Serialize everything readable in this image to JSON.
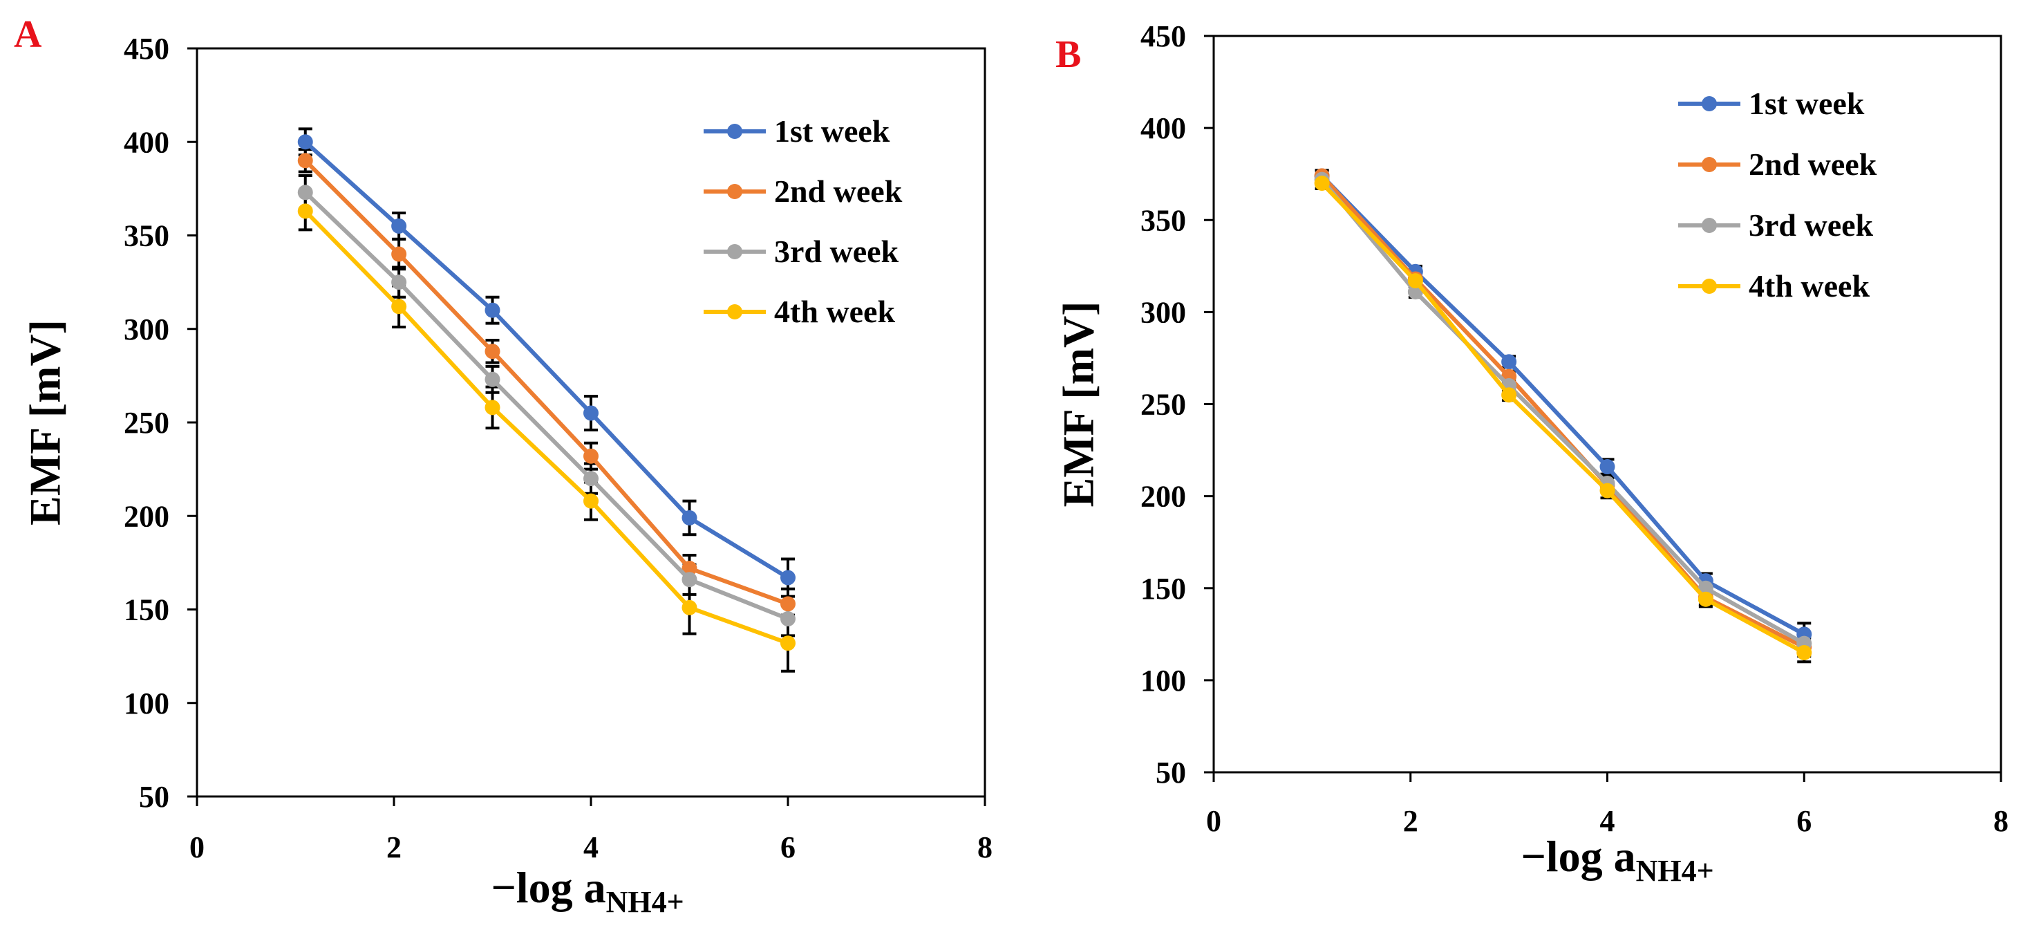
{
  "chart_data": [
    {
      "type": "line",
      "panel_label": "A",
      "xlabel_main": "−log a",
      "xlabel_sub": "NH4+",
      "ylabel": "EMF [mV]",
      "xlim": [
        0,
        8
      ],
      "ylim": [
        50,
        450
      ],
      "xticks": [
        0,
        2,
        4,
        6,
        8
      ],
      "yticks": [
        50,
        100,
        150,
        200,
        250,
        300,
        350,
        400,
        450
      ],
      "x": [
        1.1,
        2.05,
        3.0,
        4.0,
        5.0,
        6.0
      ],
      "legend_position": "top-right",
      "series": [
        {
          "name": "1st week",
          "color": "#4472C4",
          "values": [
            400,
            355,
            310,
            255,
            199,
            167
          ],
          "errors": [
            7,
            7,
            7,
            9,
            9,
            10
          ]
        },
        {
          "name": "2nd week",
          "color": "#ED7D31",
          "values": [
            390,
            340,
            288,
            232,
            172,
            153
          ],
          "errors": [
            6,
            8,
            6,
            7,
            7,
            8
          ]
        },
        {
          "name": "3rd week",
          "color": "#A5A5A5",
          "values": [
            373,
            325,
            273,
            220,
            166,
            145
          ],
          "errors": [
            9,
            8,
            7,
            8,
            8,
            9
          ]
        },
        {
          "name": "4th week",
          "color": "#FFC000",
          "values": [
            363,
            312,
            258,
            208,
            151,
            132
          ],
          "errors": [
            10,
            11,
            11,
            10,
            14,
            15
          ]
        }
      ]
    },
    {
      "type": "line",
      "panel_label": "B",
      "xlabel_main": "−log a",
      "xlabel_sub": "NH4+",
      "ylabel": "EMF [mV]",
      "xlim": [
        0,
        8
      ],
      "ylim": [
        50,
        450
      ],
      "xticks": [
        0,
        2,
        4,
        6,
        8
      ],
      "yticks": [
        50,
        100,
        150,
        200,
        250,
        300,
        350,
        400,
        450
      ],
      "x": [
        1.1,
        2.05,
        3.0,
        4.0,
        5.0,
        6.0
      ],
      "legend_position": "top-right",
      "series": [
        {
          "name": "1st week",
          "color": "#4472C4",
          "values": [
            374,
            322,
            273,
            216,
            154,
            125
          ],
          "errors": [
            3,
            3,
            3,
            4,
            4,
            6
          ]
        },
        {
          "name": "2nd week",
          "color": "#ED7D31",
          "values": [
            374,
            318,
            265,
            206,
            145,
            118
          ],
          "errors": [
            3,
            3,
            3,
            4,
            4,
            5
          ]
        },
        {
          "name": "3rd week",
          "color": "#A5A5A5",
          "values": [
            372,
            311,
            260,
            207,
            150,
            120
          ],
          "errors": [
            3,
            3,
            3,
            4,
            4,
            5
          ]
        },
        {
          "name": "4th week",
          "color": "#FFC000",
          "values": [
            370,
            317,
            255,
            203,
            144,
            115
          ],
          "errors": [
            3,
            3,
            3,
            4,
            4,
            5
          ]
        }
      ]
    }
  ]
}
